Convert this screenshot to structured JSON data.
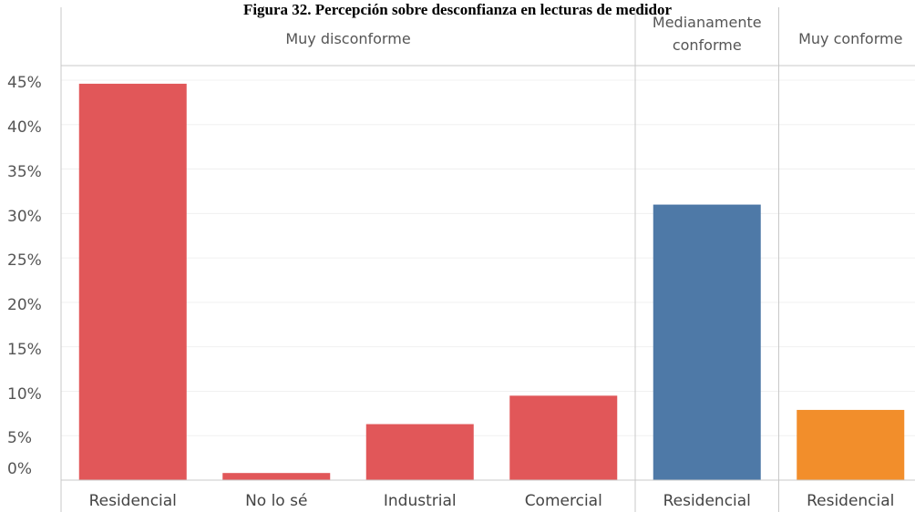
{
  "title": "Figura 32. Percepción sobre desconfianza en lecturas de medidor",
  "colors": {
    "Muy disconforme": "#e15759",
    "Medianamente conforme": "#4e79a7",
    "Muy conforme": "#f28e2b"
  },
  "chart_data": {
    "type": "bar",
    "title": "Figura 32. Percepción sobre desconfianza en lecturas de medidor",
    "ylim": [
      0,
      45
    ],
    "y_ticks": [
      "0%",
      "5%",
      "10%",
      "15%",
      "20%",
      "25%",
      "30%",
      "35%",
      "40%",
      "45%"
    ],
    "grid": true,
    "groups": [
      {
        "name_lines": [
          "Muy disconforme"
        ],
        "color": "#e15759",
        "categories": [
          "Residencial",
          "No lo sé",
          "Industrial",
          "Comercial"
        ],
        "values": [
          44.6,
          0.8,
          6.3,
          9.5
        ]
      },
      {
        "name_lines": [
          "Medianamente",
          "conforme"
        ],
        "color": "#4e79a7",
        "categories": [
          "Residencial"
        ],
        "values": [
          31.0
        ]
      },
      {
        "name_lines": [
          "Muy conforme"
        ],
        "color": "#f28e2b",
        "categories": [
          "Residencial"
        ],
        "values": [
          7.9
        ]
      }
    ]
  }
}
